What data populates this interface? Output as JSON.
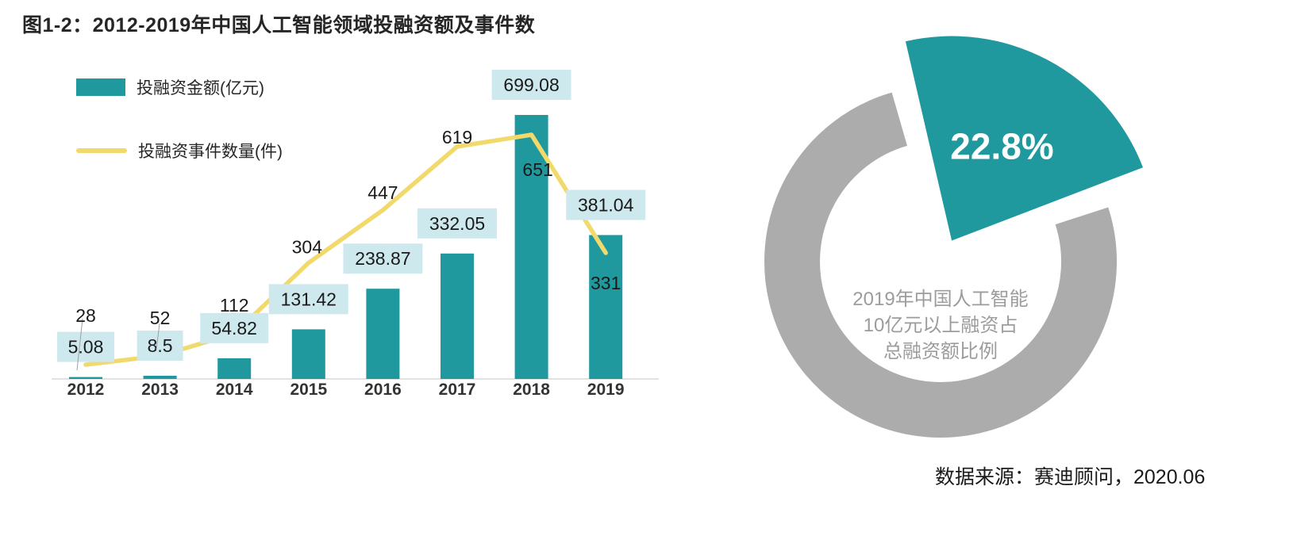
{
  "page": {
    "title": "图1-2：2012-2019年中国人工智能领域投融资额及事件数",
    "source": "数据来源：赛迪顾问，2020.06"
  },
  "colors": {
    "teal": "#1F999E",
    "yellow": "#F2D96B",
    "value_label_bg": "#CEE9EE",
    "ring_gray": "#ACACAC",
    "center_text_gray": "#9C9C9C",
    "axis_gray": "#D9D9D9",
    "text_dark": "#1A1A1A"
  },
  "chart_data": [
    {
      "type": "bar",
      "combo": "bar+line",
      "title": "2012-2019年中国人工智能领域投融资额及事件数",
      "categories": [
        "2012",
        "2013",
        "2014",
        "2015",
        "2016",
        "2017",
        "2018",
        "2019"
      ],
      "series": [
        {
          "name": "投融资金额(亿元)",
          "type": "bar",
          "color": "#1F999E",
          "values": [
            5.08,
            8.5,
            54.82,
            131.42,
            238.87,
            332.05,
            699.08,
            381.04
          ]
        },
        {
          "name": "投融资事件数量(件)",
          "type": "line",
          "color": "#F2D96B",
          "values": [
            28,
            52,
            112,
            304,
            447,
            619,
            651,
            331
          ]
        }
      ],
      "legend_position": "top-left",
      "grid": false,
      "data_labels": true,
      "xlabel": "",
      "ylabel": ""
    },
    {
      "type": "pie",
      "slices": [
        {
          "label": "22.8%",
          "value": 22.8,
          "color": "#1F999E",
          "exploded": true
        },
        {
          "label": "",
          "value": 77.2,
          "color": "#ACACAC"
        }
      ],
      "center_text_lines": [
        "2019年中国人工智能",
        "10亿元以上融资占",
        "总融资额比例"
      ]
    }
  ]
}
